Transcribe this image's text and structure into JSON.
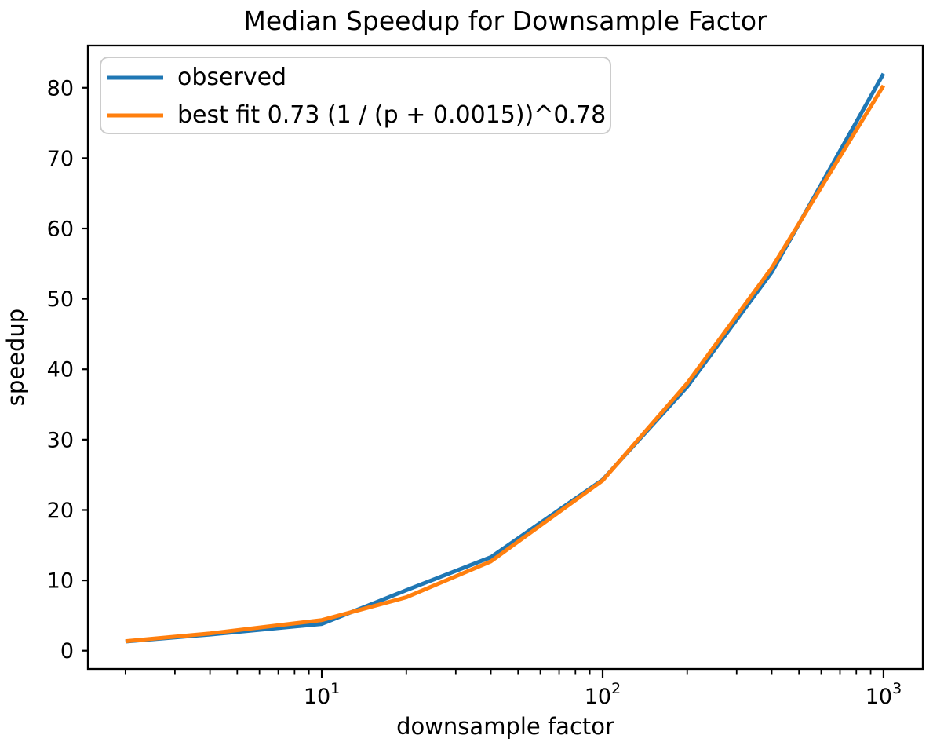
{
  "figure": {
    "title": "Median Speedup for Downsample Factor",
    "xlabel": "downsample factor",
    "ylabel": "speedup"
  },
  "chart_data": {
    "type": "line",
    "title": "Median Speedup for Downsample Factor",
    "xlabel": "downsample factor",
    "ylabel": "speedup",
    "x_scale": "log",
    "y_scale": "linear",
    "grid": false,
    "legend_position": "upper left",
    "x": [
      2,
      4,
      10,
      20,
      40,
      100,
      200,
      400,
      1000
    ],
    "series": [
      {
        "name": "observed",
        "color": "#1f77b4",
        "values": [
          1.3,
          2.3,
          3.8,
          8.6,
          13.3,
          24.3,
          37.5,
          53.8,
          82.0
        ]
      },
      {
        "name": "best fit 0.73 (1 / (p + 0.0015))^0.78",
        "color": "#ff7f0e",
        "values": [
          1.35,
          2.45,
          4.35,
          7.6,
          12.7,
          24.2,
          38.0,
          54.4,
          80.3
        ]
      }
    ],
    "xlim": [
      1.47,
      1380
    ],
    "ylim": [
      -2.6,
      86.0
    ],
    "y_ticks": [
      0,
      10,
      20,
      30,
      40,
      50,
      60,
      70,
      80
    ],
    "x_major_ticks": [
      10,
      100,
      1000
    ],
    "x_major_tick_labels": [
      "10^1",
      "10^2",
      "10^3"
    ],
    "x_minor_mantissas": [
      2,
      3,
      4,
      5,
      6,
      7,
      8,
      9
    ]
  }
}
